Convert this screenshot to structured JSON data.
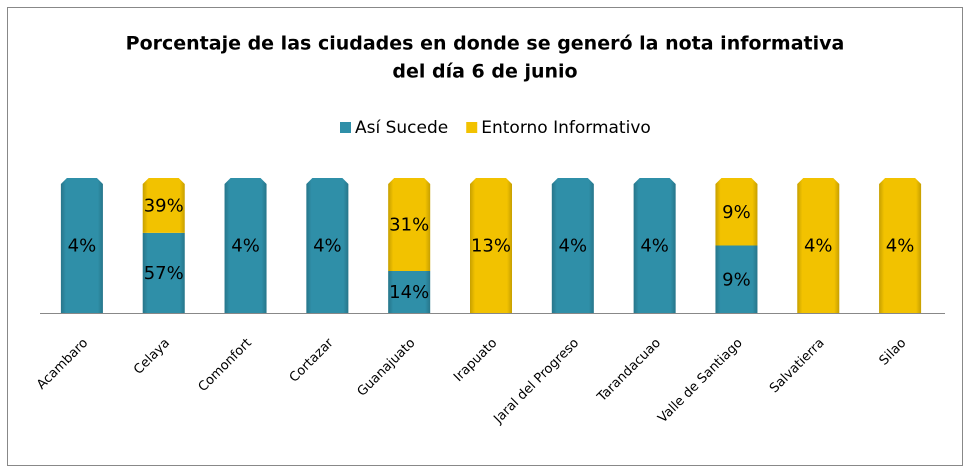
{
  "chart_data": {
    "type": "bar",
    "stacked": "percent",
    "title": [
      "Porcentaje de las ciudades en donde se generó la nota informativa",
      "del día 6 de junio"
    ],
    "categories": [
      "Acambaro",
      "Celaya",
      "Comonfort",
      "Cortazar",
      "Guanajuato",
      "Irapuato",
      "Jaral del Progreso",
      "Tarandacuao",
      "Valle de Santiago",
      "Salvatierra",
      "Silao"
    ],
    "series": [
      {
        "name": "Así Sucede",
        "color": "#2f8fa8",
        "values": [
          4,
          57,
          4,
          4,
          14,
          null,
          4,
          4,
          9,
          null,
          null
        ],
        "value_labels": [
          "4%",
          "57%",
          "4%",
          "4%",
          "14%",
          null,
          "4%",
          "4%",
          "9%",
          null,
          null
        ]
      },
      {
        "name": "Entorno Informativo",
        "color": "#f2c200",
        "values": [
          null,
          39,
          null,
          null,
          31,
          13,
          null,
          null,
          9,
          4,
          4
        ],
        "value_labels": [
          null,
          "39%",
          null,
          null,
          "31%",
          "13%",
          null,
          null,
          "9%",
          "4%",
          "4%"
        ]
      }
    ],
    "legend": "top"
  }
}
